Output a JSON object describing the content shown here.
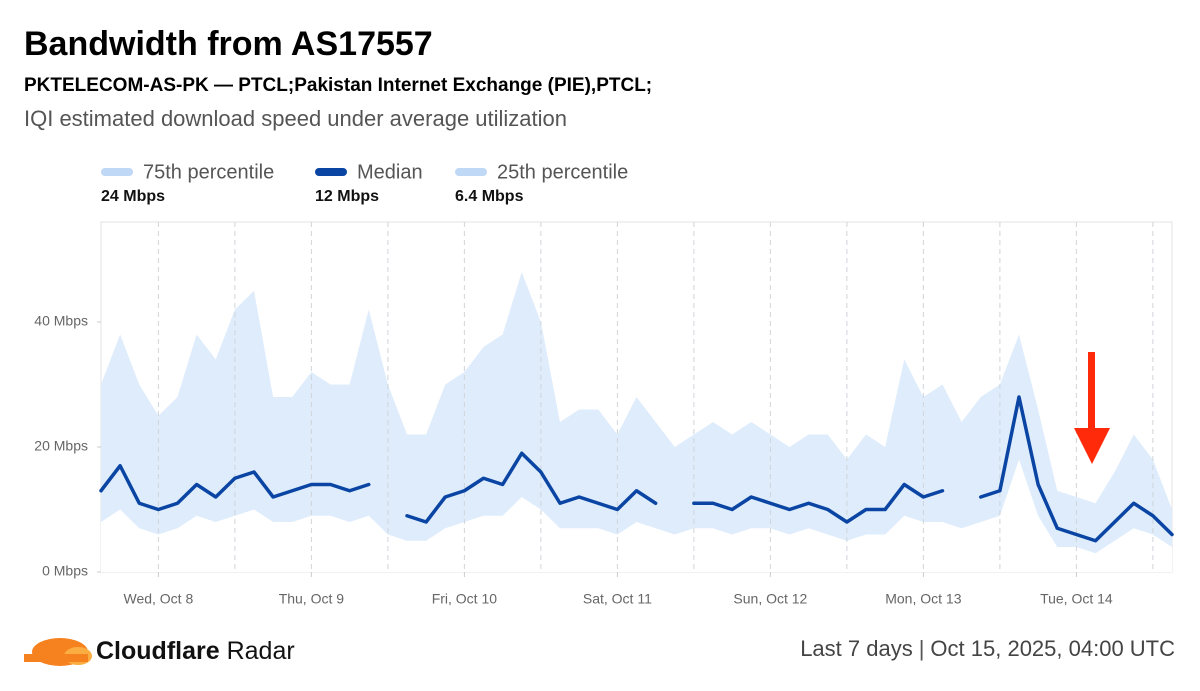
{
  "chart_data": {
    "type": "line",
    "title": "Bandwidth from AS17557",
    "subtitle": "PKTELECOM-AS-PK — PTCL;Pakistan Internet Exchange (PIE),PTCL;",
    "description": "IQI estimated download speed under average utilization",
    "categories": [
      null,
      null,
      null,
      "Wed, Oct 8",
      null,
      null,
      null,
      null,
      null,
      null,
      null,
      "Thu, Oct 9",
      null,
      null,
      null,
      null,
      null,
      null,
      null,
      "Fri, Oct 10",
      null,
      null,
      null,
      null,
      null,
      null,
      null,
      "Sat, Oct 11",
      null,
      null,
      null,
      null,
      null,
      null,
      null,
      "Sun, Oct 12",
      null,
      null,
      null,
      null,
      null,
      null,
      null,
      "Mon, Oct 13",
      null,
      null,
      null,
      null,
      null,
      null,
      null,
      "Tue, Oct 14",
      null,
      null,
      null,
      null,
      null
    ],
    "series": [
      {
        "name": "75th percentile",
        "summary": "24 Mbps",
        "color": "#bfd8f6",
        "fill": "#deecfc",
        "values": [
          30,
          38,
          30,
          25,
          28,
          38,
          34,
          42,
          45,
          28,
          28,
          32,
          30,
          30,
          42,
          30,
          22,
          22,
          30,
          32,
          36,
          38,
          48,
          40,
          24,
          26,
          26,
          22,
          28,
          24,
          20,
          22,
          24,
          22,
          24,
          22,
          20,
          22,
          22,
          18,
          22,
          20,
          34,
          28,
          30,
          24,
          28,
          30,
          38,
          26,
          13,
          12,
          11,
          16,
          22,
          18,
          10
        ]
      },
      {
        "name": "Median",
        "summary": "12 Mbps",
        "color": "#0a45a3",
        "values": [
          13,
          17,
          11,
          10,
          11,
          14,
          12,
          15,
          16,
          12,
          13,
          14,
          14,
          13,
          14,
          null,
          9,
          8,
          12,
          13,
          15,
          14,
          19,
          16,
          11,
          12,
          11,
          10,
          13,
          11,
          null,
          11,
          11,
          10,
          12,
          11,
          10,
          11,
          10,
          8,
          10,
          10,
          14,
          12,
          13,
          null,
          12,
          13,
          28,
          14,
          7,
          6,
          5,
          8,
          11,
          9,
          6
        ]
      },
      {
        "name": "25th percentile",
        "summary": "6.4 Mbps",
        "color": "#bfd8f6",
        "fill": "#ffffff",
        "values": [
          8,
          10,
          7,
          6,
          7,
          9,
          8,
          9,
          10,
          8,
          8,
          9,
          9,
          8,
          9,
          6,
          5,
          5,
          7,
          8,
          9,
          9,
          12,
          10,
          7,
          7,
          7,
          6,
          8,
          7,
          6,
          7,
          7,
          6,
          7,
          7,
          6,
          7,
          6,
          5,
          6,
          6,
          9,
          8,
          8,
          7,
          8,
          9,
          18,
          9,
          4,
          4,
          3,
          5,
          7,
          6,
          4
        ]
      }
    ],
    "ylim": [
      0,
      56
    ],
    "yticks": [
      {
        "value": 0,
        "label": "0 Mbps"
      },
      {
        "value": 20,
        "label": "20 Mbps"
      },
      {
        "value": 40,
        "label": "40 Mbps"
      }
    ],
    "grid": true
  },
  "footer": {
    "brand_bold": "Cloudflare",
    "brand": "Radar",
    "range": "Last 7 days",
    "timestamp": "Oct 15, 2025, 04:00 UTC"
  }
}
